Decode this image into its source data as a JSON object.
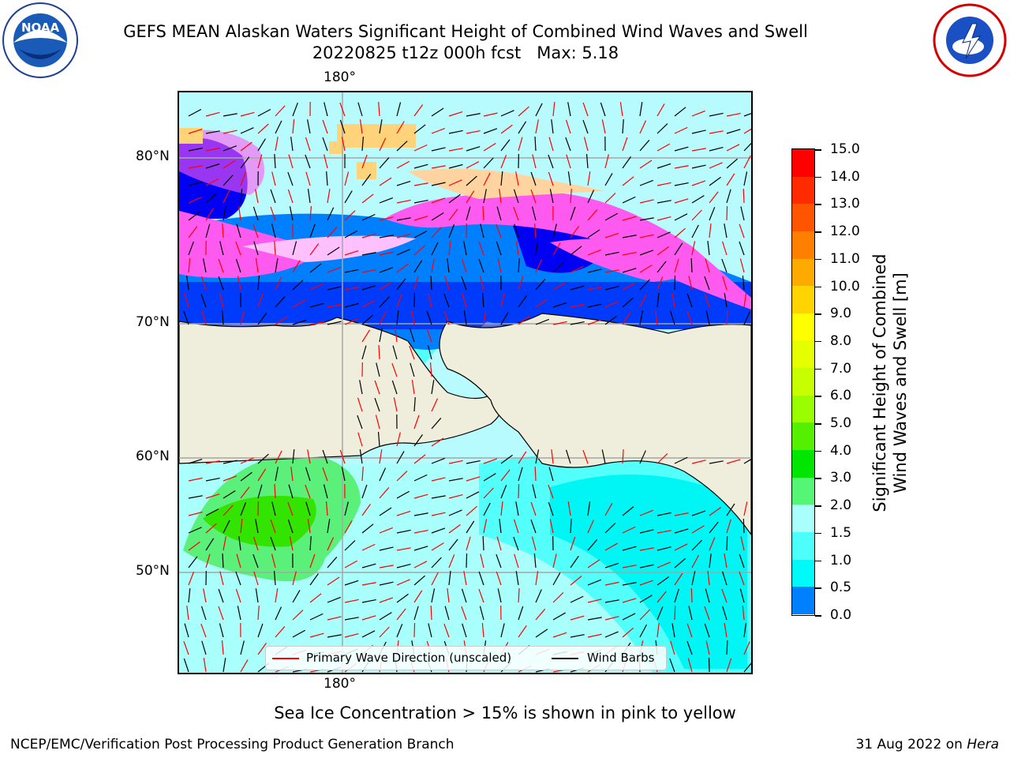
{
  "title": {
    "line1": "GEFS MEAN Alaskan Waters Significant Height of Combined Wind Waves and Swell",
    "line2": "20220825 t12z 000h fcst   Max: 5.18"
  },
  "logos": {
    "left": {
      "icon": "noaa-logo-icon",
      "text": "NOAA"
    },
    "right": {
      "icon": "nws-logo-icon"
    }
  },
  "map": {
    "lon_label_top": "180°",
    "lon_label_bottom": "180°",
    "lat_labels": [
      "80°N",
      "70°N",
      "60°N",
      "50°N"
    ]
  },
  "colorbar": {
    "title_line1": "Significant Height of Combined",
    "title_line2": "Wind Waves and Swell [m]",
    "ticks": [
      "15.0",
      "14.0",
      "13.0",
      "12.0",
      "11.0",
      "10.0",
      "9.0",
      "8.0",
      "7.0",
      "6.0",
      "5.0",
      "4.0",
      "3.0",
      "2.0",
      "1.5",
      "1.0",
      "0.5",
      "0.0"
    ],
    "colors_top_to_bottom": [
      "#ff0000",
      "#ff2a00",
      "#ff5500",
      "#ff8000",
      "#ffaa00",
      "#ffd400",
      "#ffff00",
      "#e6ff00",
      "#c8ff00",
      "#99ff00",
      "#55f000",
      "#00e600",
      "#55f575",
      "#a8fffc",
      "#4dfffb",
      "#00fafa",
      "#0080ff",
      "#0000f5"
    ]
  },
  "legend": {
    "wave_label": "Primary Wave Direction (unscaled)",
    "wind_label": "Wind Barbs",
    "wave_color": "#ff0000",
    "wind_color": "#000000"
  },
  "caption": "Sea Ice Concentration > 15% is shown in pink to yellow",
  "footer": {
    "left": "NCEP/EMC/Verification Post Processing Product Generation Branch",
    "right_date": "31 Aug 2022 on ",
    "right_host": "Hera"
  }
}
